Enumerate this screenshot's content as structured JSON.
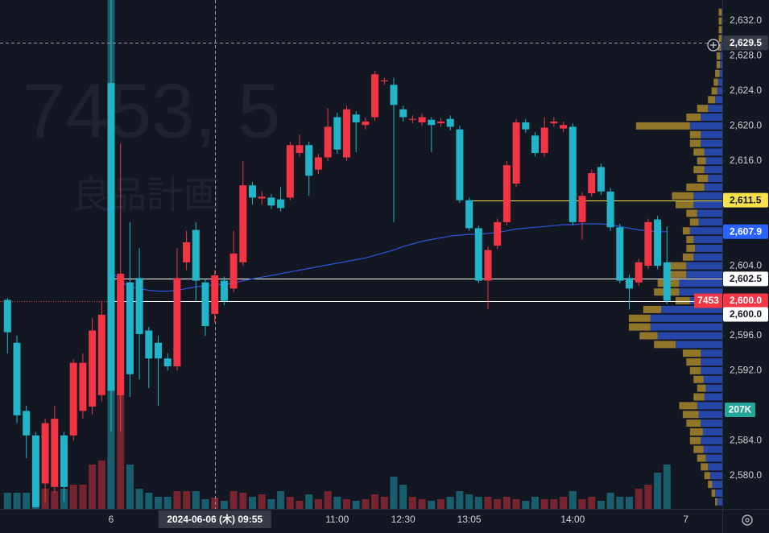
{
  "chart_data": {
    "type": "candlestick",
    "watermark": {
      "symbol": "7453, 5",
      "name": "良品計画"
    },
    "categories": [
      null,
      null,
      null,
      null,
      null,
      null,
      null,
      null,
      null,
      null,
      null,
      "6",
      null,
      null,
      null,
      null,
      null,
      null,
      null,
      null,
      null,
      null,
      null,
      null,
      null,
      null,
      null,
      null,
      null,
      null,
      null,
      null,
      null,
      null,
      null,
      "11:00",
      null,
      null,
      null,
      null,
      null,
      null,
      "12:30",
      null,
      null,
      null,
      null,
      null,
      null,
      "13:05",
      null,
      null,
      null,
      null,
      null,
      null,
      null,
      null,
      null,
      null,
      "14:00",
      null,
      null,
      null,
      null,
      null,
      null,
      null,
      null,
      null,
      null,
      null,
      "7"
    ],
    "ohlc": {
      "open": [
        2600.1,
        2595.2,
        2587.4,
        2584.6,
        2579.1,
        2578.7,
        2584.6,
        2584.6,
        2587.4,
        2587.9,
        2589.2,
        2624.9,
        2589.2,
        2602.1,
        2602.6,
        2596.6,
        2595.2,
        2593.4,
        2592.5,
        2604.4,
        2608.1,
        2602.1,
        2598.5,
        2602.3,
        2601.4,
        2604.4,
        2613.2,
        2611.7,
        2611.8,
        2611.6,
        2611.8,
        2616.9,
        2617.8,
        2615.0,
        2616.4,
        2621.0,
        2616.4,
        2621.3,
        2620.1,
        2621.0,
        2625.1,
        2624.7,
        2621.9,
        2620.7,
        2620.4,
        2620.7,
        2620.3,
        2620.8,
        2619.6,
        2611.5,
        2608.3,
        2602.3,
        2606.3,
        2609.0,
        2613.4,
        2620.4,
        2618.9,
        2616.9,
        2620.3,
        2619.7,
        2619.9,
        2609.0,
        2612.3,
        2615.3,
        2612.5,
        2608.4,
        2602.6,
        2602.1,
        2604.0,
        2609.3,
        2604.4,
        null,
        null
      ],
      "high": [
        2600.3,
        2596.0,
        2588.0,
        2585.0,
        2586.5,
        2588.0,
        2585.0,
        2593.3,
        2594.0,
        2598.0,
        2600.0,
        2634.4,
        2618.0,
        2609.0,
        2606.0,
        2597.0,
        2596.0,
        2594.0,
        2606.0,
        2608.0,
        2609.0,
        2602.5,
        2603.5,
        2602.8,
        2608.0,
        2616.0,
        2613.6,
        2612.5,
        2612.2,
        2613.0,
        2618.2,
        2619.0,
        2618.2,
        2616.8,
        2622.0,
        2621.5,
        2622.3,
        2621.7,
        2621.0,
        2626.3,
        2625.5,
        2625.5,
        2622.3,
        2621.2,
        2621.4,
        2621.0,
        2620.9,
        2621.2,
        2620.0,
        2611.8,
        2608.6,
        2606.2,
        2609.4,
        2616.0,
        2620.8,
        2620.8,
        2619.3,
        2621.0,
        2621.0,
        2620.5,
        2620.3,
        2612.4,
        2615.0,
        2615.7,
        2612.9,
        2608.8,
        2603.0,
        2604.8,
        2609.4,
        2609.7,
        2608.5,
        null,
        null
      ],
      "low": [
        2594.0,
        2586.0,
        2582.0,
        2576.3,
        2577.0,
        2578.0,
        2577.0,
        2584.0,
        2586.5,
        2587.0,
        2588.5,
        2585.0,
        2585.0,
        2589.0,
        2591.0,
        2590.0,
        2588.0,
        2592.0,
        2592.0,
        2603.5,
        2600.0,
        2596.0,
        2597.5,
        2599.5,
        2601.0,
        2604.0,
        2611.0,
        2611.0,
        2610.5,
        2610.2,
        2611.5,
        2616.5,
        2612.0,
        2614.5,
        2616.0,
        2616.8,
        2616.0,
        2617.0,
        2619.6,
        2620.6,
        2624.7,
        2609.0,
        2620.5,
        2620.3,
        2620.0,
        2617.0,
        2619.9,
        2619.5,
        2611.2,
        2608.0,
        2602.0,
        2599.0,
        2605.9,
        2608.6,
        2613.0,
        2619.2,
        2616.5,
        2616.5,
        2619.9,
        2619.3,
        2608.6,
        2607.0,
        2611.9,
        2612.1,
        2608.0,
        2602.0,
        2599.0,
        2601.7,
        2603.6,
        2603.6,
        2599.6,
        null,
        null
      ],
      "close": [
        2596.4,
        2586.9,
        2584.6,
        2576.4,
        2586.0,
        2586.5,
        2578.7,
        2592.9,
        2592.9,
        2596.6,
        2598.4,
        2589.7,
        2603.1,
        2591.6,
        2596.2,
        2593.4,
        2593.4,
        2592.5,
        2602.6,
        2606.7,
        2602.3,
        2597.1,
        2602.9,
        2600.0,
        2605.4,
        2613.2,
        2611.8,
        2611.9,
        2610.9,
        2610.6,
        2617.8,
        2617.8,
        2614.3,
        2616.4,
        2619.9,
        2617.3,
        2621.9,
        2620.4,
        2620.5,
        2625.9,
        2625.2,
        2622.4,
        2621.0,
        2620.8,
        2621.0,
        2620.1,
        2620.5,
        2619.9,
        2611.5,
        2608.3,
        2602.3,
        2605.8,
        2609.0,
        2615.5,
        2620.4,
        2619.6,
        2616.9,
        2619.8,
        2620.5,
        2620.1,
        2609.0,
        2612.0,
        2614.6,
        2612.5,
        2608.4,
        2602.3,
        2601.4,
        2604.4,
        2609.0,
        2604.0,
        2600.0,
        null,
        null
      ]
    },
    "up_color": "#f23645",
    "down_color": "#22b5c9",
    "volume": [
      20,
      20,
      20,
      90,
      25,
      22,
      25,
      30,
      30,
      55,
      60,
      632,
      145,
      55,
      25,
      20,
      15,
      15,
      22,
      22,
      22,
      12,
      14,
      10,
      22,
      20,
      15,
      18,
      12,
      22,
      15,
      10,
      18,
      12,
      22,
      15,
      12,
      10,
      12,
      18,
      15,
      40,
      30,
      15,
      12,
      10,
      12,
      15,
      22,
      18,
      15,
      15,
      12,
      15,
      12,
      10,
      15,
      12,
      12,
      15,
      22,
      12,
      15,
      10,
      20,
      15,
      15,
      25,
      30,
      45,
      55,
      null,
      null
    ],
    "volume_ylim": [
      0,
      632
    ],
    "volume_label": "207K",
    "vwap": {
      "color": "#2f54d9",
      "values": [
        null,
        null,
        null,
        null,
        null,
        null,
        null,
        null,
        null,
        null,
        null,
        2603.5,
        2602.2,
        2601.6,
        2601.4,
        2601.2,
        2601.1,
        2601.1,
        2601.2,
        2601.4,
        2601.6,
        2601.7,
        2601.8,
        2601.9,
        2602.0,
        2602.3,
        2602.5,
        2602.7,
        2602.9,
        2603.1,
        2603.3,
        2603.5,
        2603.7,
        2603.9,
        2604.1,
        2604.3,
        2604.5,
        2604.7,
        2604.9,
        2605.2,
        2605.5,
        2605.8,
        2606.2,
        2606.5,
        2606.8,
        2607.0,
        2607.2,
        2607.4,
        2607.5,
        2607.6,
        2607.6,
        2607.7,
        2607.8,
        2608.0,
        2608.2,
        2608.3,
        2608.4,
        2608.5,
        2608.6,
        2608.7,
        2608.7,
        2608.8,
        2608.8,
        2608.8,
        2608.7,
        2608.5,
        2608.3,
        2608.1,
        2608.0,
        2607.9,
        2607.9,
        null,
        null
      ]
    },
    "volume_profile": {
      "prices": [
        2577,
        2578,
        2579,
        2580,
        2581,
        2582,
        2583,
        2584,
        2585,
        2586,
        2587,
        2588,
        2589,
        2590,
        2591,
        2592,
        2593,
        2594,
        2595,
        2596,
        2597,
        2598,
        2599,
        2600,
        2601,
        2602,
        2603,
        2604,
        2605,
        2606,
        2607,
        2608,
        2609,
        2610,
        2611,
        2612,
        2613,
        2614,
        2615,
        2616,
        2617,
        2618,
        2619,
        2620,
        2621,
        2622,
        2623,
        2624,
        2625,
        2626,
        2627,
        2628,
        2629,
        2630,
        2631,
        2632,
        2633
      ],
      "gold": [
        3,
        5,
        6,
        8,
        10,
        12,
        14,
        15,
        18,
        20,
        22,
        25,
        15,
        12,
        14,
        15,
        20,
        25,
        30,
        25,
        30,
        30,
        25,
        20,
        35,
        30,
        30,
        25,
        15,
        12,
        10,
        10,
        12,
        15,
        25,
        30,
        25,
        15,
        15,
        12,
        15,
        15,
        15,
        75,
        20,
        15,
        10,
        8,
        6,
        6,
        5,
        5,
        4,
        4,
        4,
        4,
        4
      ],
      "blue": [
        7,
        10,
        14,
        17,
        20,
        23,
        26,
        30,
        27,
        30,
        33,
        35,
        25,
        23,
        26,
        30,
        30,
        30,
        65,
        90,
        100,
        100,
        85,
        45,
        60,
        60,
        50,
        50,
        40,
        38,
        40,
        45,
        33,
        35,
        40,
        40,
        25,
        20,
        25,
        23,
        25,
        30,
        30,
        45,
        30,
        20,
        10,
        7,
        6,
        4,
        3,
        3,
        2,
        1,
        1,
        1,
        1
      ],
      "gold_color": "#a8862a",
      "blue_color": "#2a4fc0",
      "xlim": [
        0,
        140
      ]
    },
    "ylim": [
      2576.2,
      2634.4
    ],
    "yticks": [
      {
        "value": 2580,
        "label": "2,580.0"
      },
      {
        "value": 2584,
        "label": "2,584.0"
      },
      {
        "value": 2592,
        "label": "2,592.0"
      },
      {
        "value": 2596,
        "label": "2,596.0"
      },
      {
        "value": 2604,
        "label": "2,604.0"
      },
      {
        "value": 2616,
        "label": "2,616.0"
      },
      {
        "value": 2620,
        "label": "2,620.0"
      },
      {
        "value": 2624,
        "label": "2,624.0"
      },
      {
        "value": 2628,
        "label": "2,628.0"
      },
      {
        "value": 2632,
        "label": "2,632.0"
      }
    ],
    "price_labels": [
      {
        "value": 2629.5,
        "label": "2,629.5",
        "bg": "#363a45",
        "fg": "#ffffff",
        "line": "dashed",
        "line_color": "#9598a1"
      },
      {
        "value": 2611.5,
        "label": "2,611.5",
        "bg": "#f7e04a",
        "fg": "#131722",
        "line": "solid",
        "line_color": "#f7e04a",
        "from_category": "13:05"
      },
      {
        "value": 2607.9,
        "label": "2,607.9",
        "bg": "#2962ff",
        "fg": "#ffffff",
        "line": "none"
      },
      {
        "value": 2602.5,
        "label": "2,602.5",
        "bg": "#ffffff",
        "fg": "#131722",
        "line": "solid",
        "line_color": "#ffffff",
        "from_category": "6"
      },
      {
        "value": 2600.0,
        "label": "2,600.0",
        "bg": "#f23645",
        "fg": "#ffffff",
        "line": "dotted",
        "line_color": "#f23645",
        "tag": "7453"
      },
      {
        "value": 2600.0,
        "label": "2,600.0",
        "bg": "#ffffff",
        "fg": "#131722",
        "line": "solid",
        "line_color": "#ffffff",
        "from_category": "6"
      }
    ],
    "crosshair": {
      "category": 22,
      "value": 2629.5,
      "x_label": "2024-06-06 (木)  09:55"
    }
  }
}
